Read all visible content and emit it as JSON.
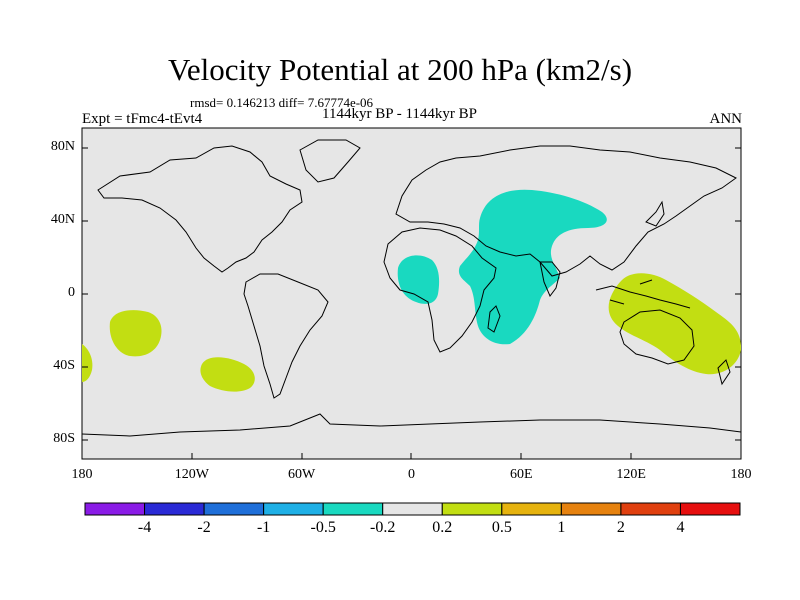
{
  "title": "Velocity Potential at 200 hPa (km2/s)",
  "stats_line": "rmsd= 0.146213 diff= 7.67774e-06",
  "subtitle": "1144kyr BP - 1144kyr BP",
  "left_label": "Expt = tFmc4-tEvt4",
  "right_label": "ANN",
  "lat_labels": [
    {
      "text": "80N",
      "lat": 80
    },
    {
      "text": "40N",
      "lat": 40
    },
    {
      "text": "0",
      "lat": 0
    },
    {
      "text": "40S",
      "lat": -40
    },
    {
      "text": "80S",
      "lat": -80
    }
  ],
  "lon_labels": [
    {
      "text": "180",
      "lon": -180
    },
    {
      "text": "120W",
      "lon": -120
    },
    {
      "text": "60W",
      "lon": -60
    },
    {
      "text": "0",
      "lon": 0
    },
    {
      "text": "60E",
      "lon": 60
    },
    {
      "text": "120E",
      "lon": 120
    },
    {
      "text": "180",
      "lon": 180
    }
  ],
  "colors": {
    "background_fill": "#e6e6e6",
    "negative_region": "#19d9c0",
    "positive_region": "#c2de12",
    "coastline": "#000000"
  },
  "regions": [
    {
      "name": "Eurasia-Africa negative anomaly",
      "sign": "negative",
      "level": "-0.5 to -0.2"
    },
    {
      "name": "Tropical Atlantic negative anomaly",
      "sign": "negative",
      "level": "-0.5 to -0.2"
    },
    {
      "name": "Maritime Continent / Australia positive anomaly",
      "sign": "positive",
      "level": "0.2 to 0.5"
    },
    {
      "name": "South Pacific positive anomaly",
      "sign": "positive",
      "level": "0.2 to 0.5"
    },
    {
      "name": "Southeast Pacific positive anomaly",
      "sign": "positive",
      "level": "0.2 to 0.5"
    },
    {
      "name": "Dateline south positive anomaly",
      "sign": "positive",
      "level": "0.2 to 0.5"
    }
  ],
  "colorbar": {
    "colors": [
      "#8a1be6",
      "#2a2ad6",
      "#1f6fd9",
      "#1fb0e6",
      "#19d9c0",
      "#e6e6e6",
      "#c2de12",
      "#e6b30f",
      "#e6820f",
      "#e0400f",
      "#e60f0f"
    ],
    "labels": [
      "-4",
      "-2",
      "-1",
      "-0.5",
      "-0.2",
      "0.2",
      "0.5",
      "1",
      "2",
      "4"
    ]
  }
}
